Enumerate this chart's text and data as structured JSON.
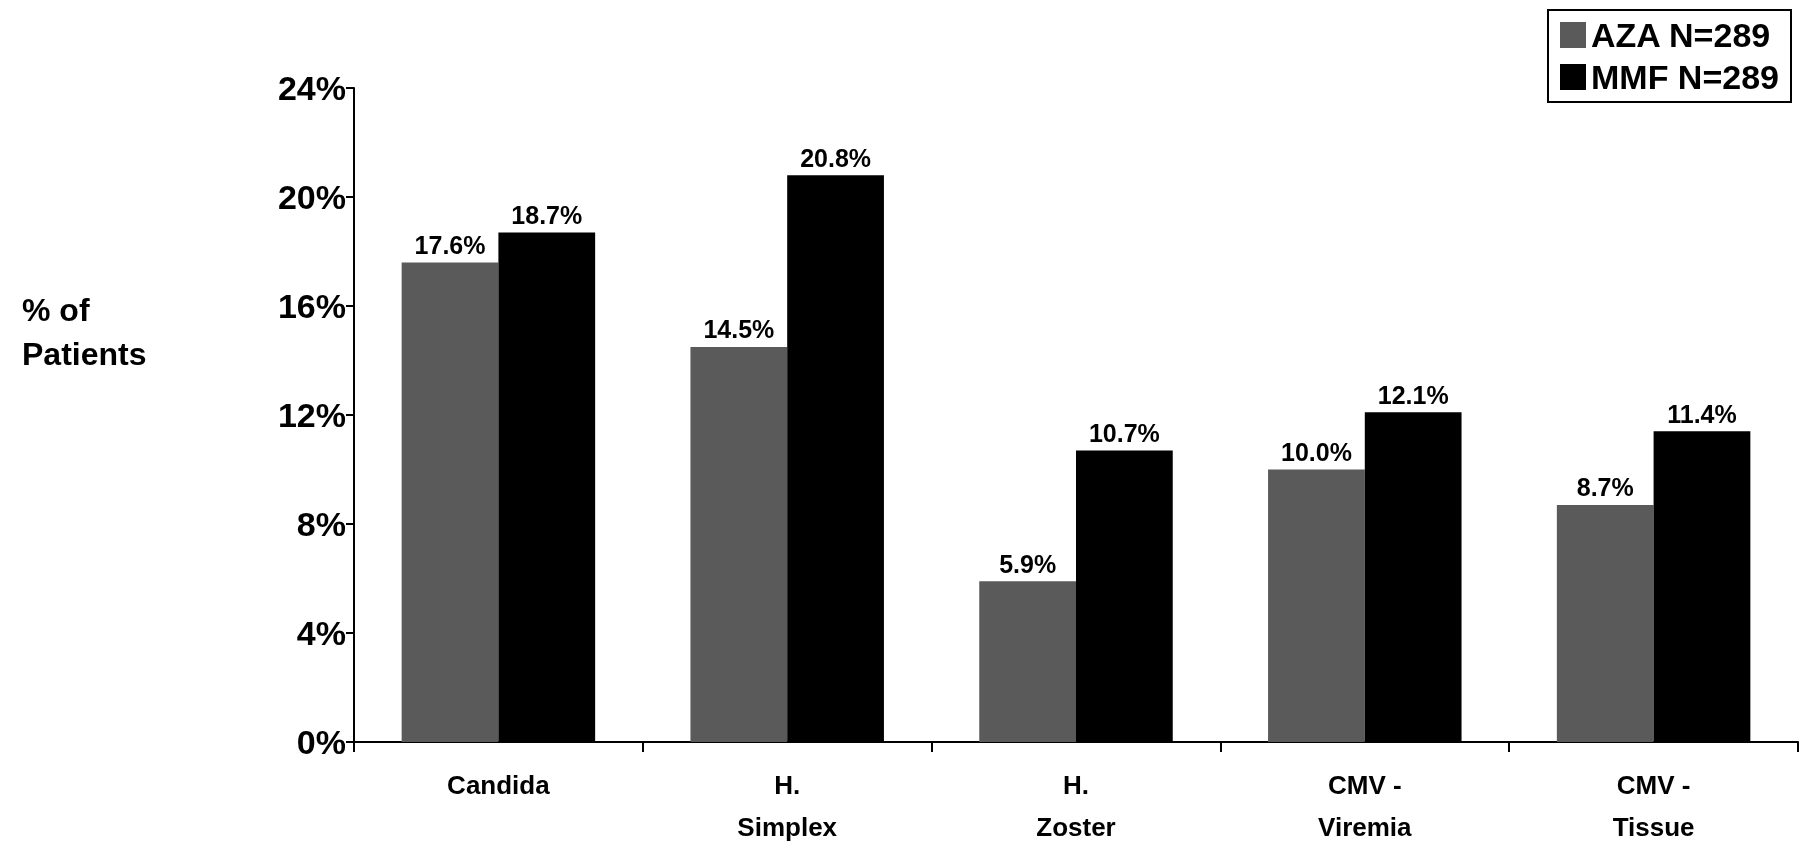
{
  "chart_data": {
    "type": "bar",
    "ylabel": "% of Patients",
    "categories": [
      "Candida",
      "H. Simplex",
      "H. Zoster",
      "CMV - Viremia",
      "CMV - Tissue"
    ],
    "series": [
      {
        "name": "AZA N=289",
        "color": "#5a5a5a",
        "values": [
          17.6,
          14.5,
          5.9,
          10.0,
          8.7
        ],
        "value_labels": [
          "17.6%",
          "14.5%",
          "5.9%",
          "10.0%",
          "8.7%"
        ]
      },
      {
        "name": "MMF N=289",
        "color": "#000000",
        "values": [
          18.7,
          20.8,
          10.7,
          12.1,
          11.4
        ],
        "value_labels": [
          "18.7%",
          "20.8%",
          "10.7%",
          "12.1%",
          "11.4%"
        ]
      }
    ],
    "ylim": [
      0,
      24
    ],
    "yticks": [
      {
        "value": 0,
        "label": "0%"
      },
      {
        "value": 4,
        "label": "4%"
      },
      {
        "value": 8,
        "label": "8%"
      },
      {
        "value": 12,
        "label": "12%"
      },
      {
        "value": 16,
        "label": "16%"
      },
      {
        "value": 20,
        "label": "20%"
      },
      {
        "value": 24,
        "label": "24%"
      }
    ],
    "grid": false,
    "legend": "top right"
  }
}
